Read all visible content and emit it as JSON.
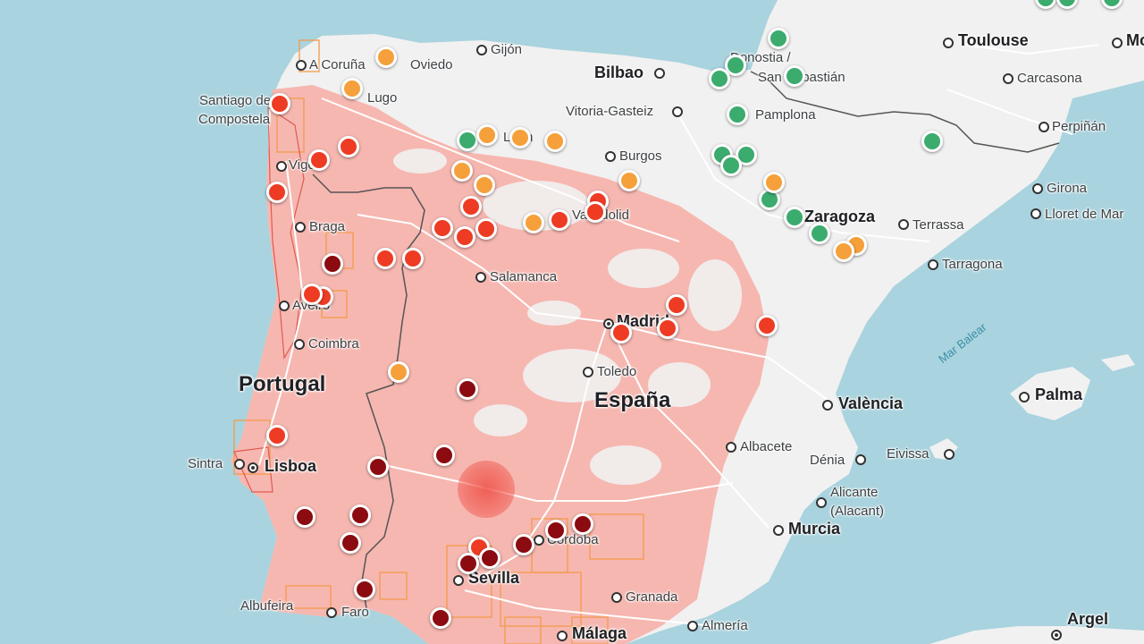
{
  "map": {
    "countries": [
      {
        "id": "portugal",
        "label": "Portugal"
      },
      {
        "id": "espana",
        "label": "España"
      }
    ],
    "seas": [
      {
        "id": "mar-balear",
        "label": "Mar Balear"
      }
    ],
    "cities": [
      {
        "id": "a-coruna",
        "label": "A Coruña"
      },
      {
        "id": "oviedo",
        "label": "Oviedo"
      },
      {
        "id": "gijon",
        "label": "Gijón"
      },
      {
        "id": "bilbao",
        "label": "Bilbao"
      },
      {
        "id": "donostia",
        "label": "Donostia /"
      },
      {
        "id": "san-sebastian",
        "label": "San Sebastián"
      },
      {
        "id": "toulouse",
        "label": "Toulouse"
      },
      {
        "id": "mo",
        "label": "Mo"
      },
      {
        "id": "carcasona",
        "label": "Carcasona"
      },
      {
        "id": "santiago",
        "label": "Santiago de"
      },
      {
        "id": "compostela",
        "label": "Compostela"
      },
      {
        "id": "lugo",
        "label": "Lugo"
      },
      {
        "id": "vitoria",
        "label": "Vitoria-Gasteiz"
      },
      {
        "id": "pamplona",
        "label": "Pamplona"
      },
      {
        "id": "perpinan",
        "label": "Perpiñán"
      },
      {
        "id": "leon",
        "label": "León"
      },
      {
        "id": "burgos",
        "label": "Burgos"
      },
      {
        "id": "vigo",
        "label": "Vigo"
      },
      {
        "id": "girona",
        "label": "Girona"
      },
      {
        "id": "braga",
        "label": "Braga"
      },
      {
        "id": "valladolid",
        "label": "Valladolid"
      },
      {
        "id": "zaragoza",
        "label": "Zaragoza"
      },
      {
        "id": "terrassa",
        "label": "Terrassa"
      },
      {
        "id": "lloret",
        "label": "Lloret de Mar"
      },
      {
        "id": "tarragona",
        "label": "Tarragona"
      },
      {
        "id": "salamanca",
        "label": "Salamanca"
      },
      {
        "id": "aveiro",
        "label": "Aveiro"
      },
      {
        "id": "madrid",
        "label": "Madrid"
      },
      {
        "id": "coimbra",
        "label": "Coimbra"
      },
      {
        "id": "toledo",
        "label": "Toledo"
      },
      {
        "id": "valencia",
        "label": "València"
      },
      {
        "id": "palma",
        "label": "Palma"
      },
      {
        "id": "albacete",
        "label": "Albacete"
      },
      {
        "id": "eivissa",
        "label": "Eivissa"
      },
      {
        "id": "denia",
        "label": "Dénia"
      },
      {
        "id": "sintra",
        "label": "Sintra"
      },
      {
        "id": "lisboa",
        "label": "Lisboa"
      },
      {
        "id": "alicante",
        "label": "Alicante"
      },
      {
        "id": "alacant",
        "label": "(Alacant)"
      },
      {
        "id": "murcia",
        "label": "Murcia"
      },
      {
        "id": "cordoba",
        "label": "Córdoba"
      },
      {
        "id": "sevilla",
        "label": "Sevilla"
      },
      {
        "id": "granada",
        "label": "Granada"
      },
      {
        "id": "albufeira",
        "label": "Albufeira"
      },
      {
        "id": "faro",
        "label": "Faro"
      },
      {
        "id": "almeria",
        "label": "Almería"
      },
      {
        "id": "malaga",
        "label": "Málaga"
      },
      {
        "id": "argel",
        "label": "Argel"
      }
    ],
    "colors": {
      "sea": "#a9d3de",
      "land": "#f1f1f1",
      "risk_overlay": "#f6b3ac",
      "marker_orange": "#f5a03a",
      "marker_red": "#ee3b24",
      "marker_dark_red": "#8b0b10",
      "marker_green": "#3bab6e"
    }
  }
}
